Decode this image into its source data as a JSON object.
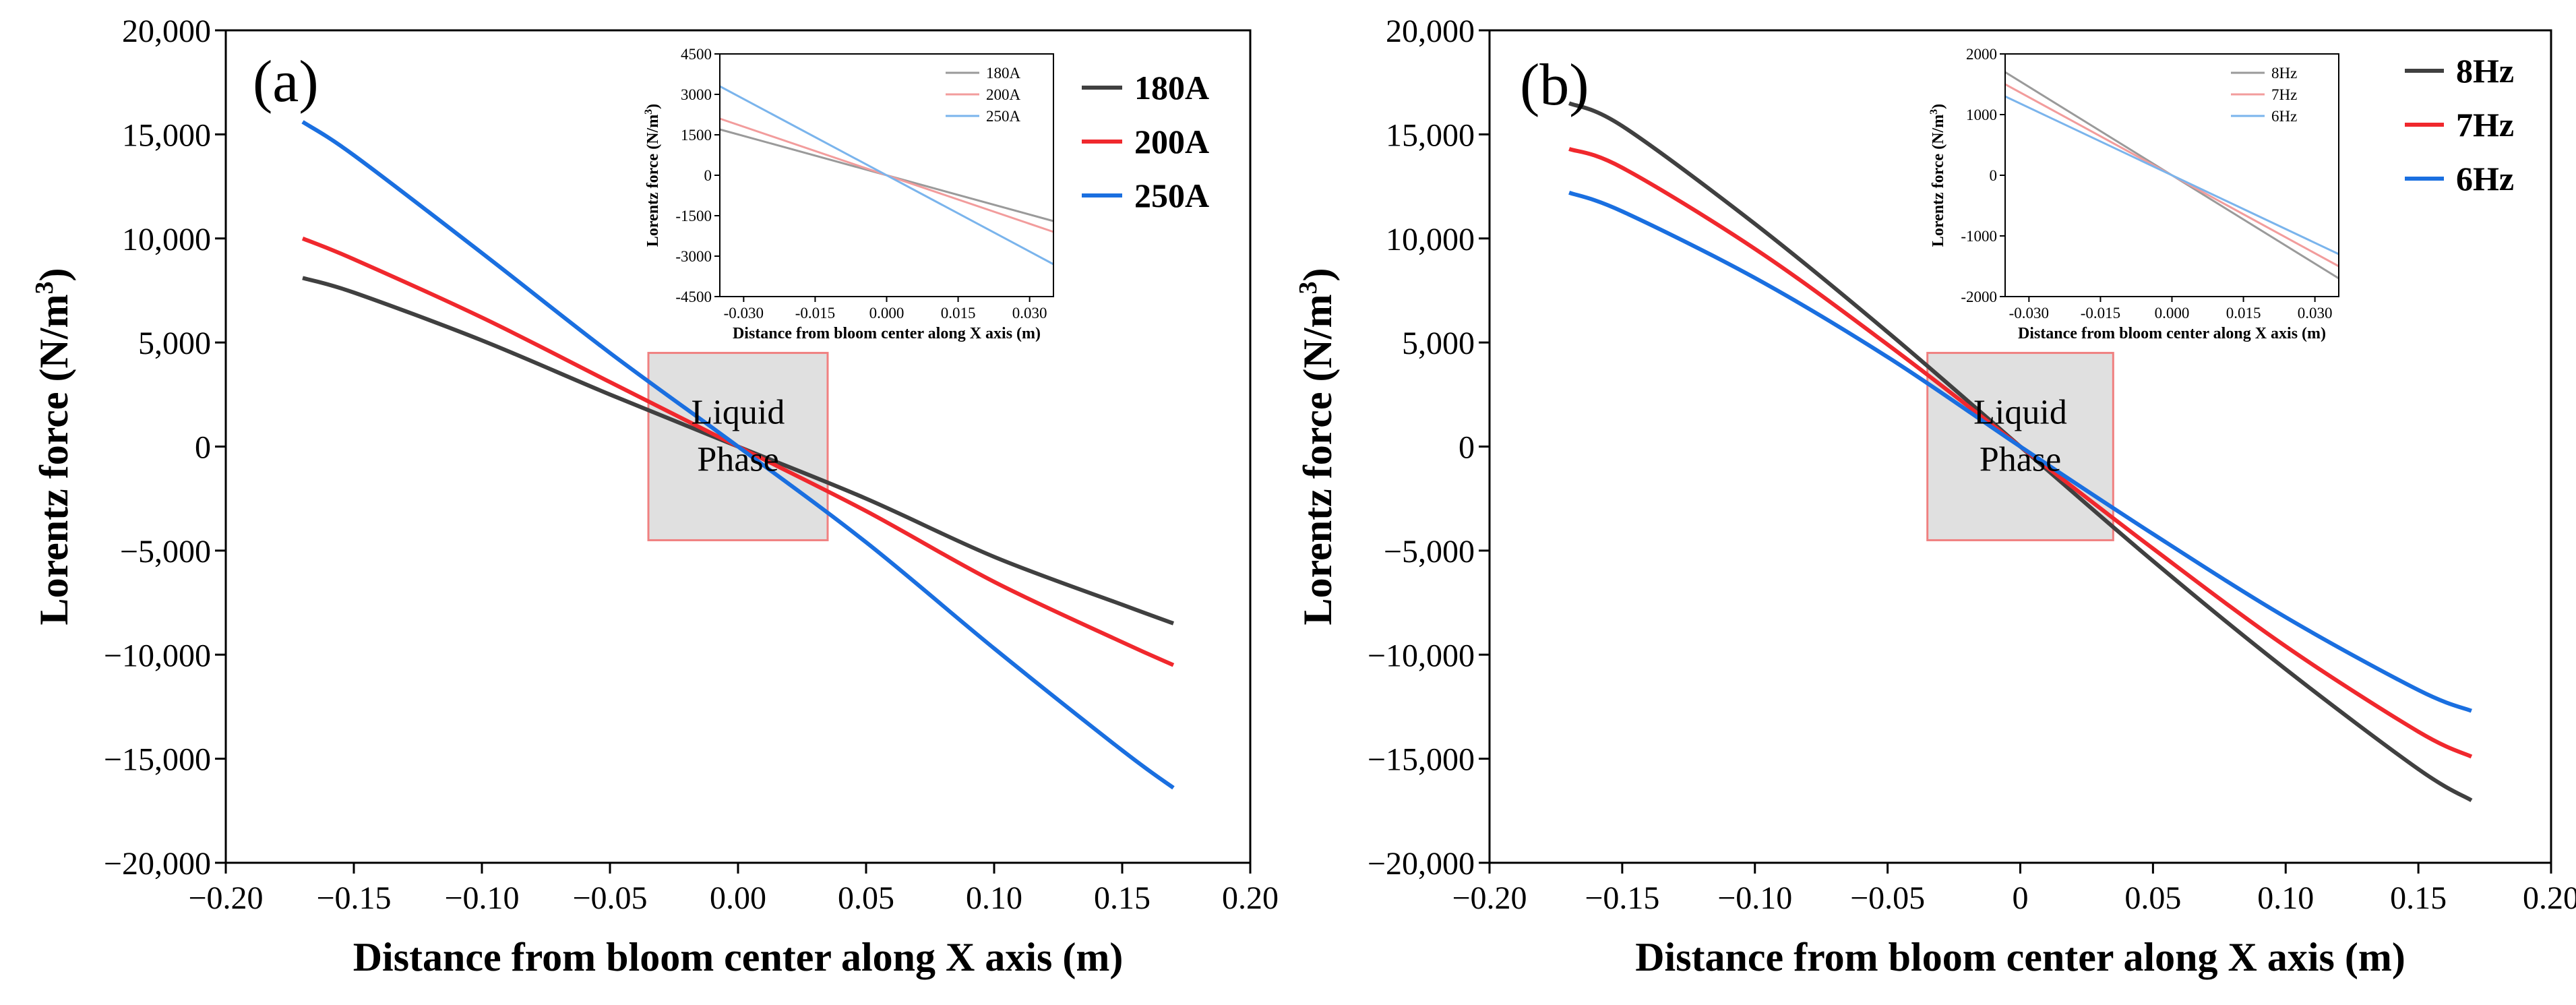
{
  "chart_data": [
    {
      "type": "line",
      "panel_label": "(a)",
      "xlabel": "Distance from bloom center along X axis (m)",
      "ylabel": "Lorentz force (N/m3)",
      "ylabel_main": "Lorentz  force  (N/m",
      "ylabel_sup": "3",
      "ylabel_tail": ")",
      "xlim": [
        -0.2,
        0.2
      ],
      "ylim": [
        -20000,
        20000
      ],
      "xticks": [
        -0.2,
        -0.15,
        -0.1,
        -0.05,
        0,
        0.05,
        0.1,
        0.15,
        0.2
      ],
      "xtick_labels": [
        "−0.20",
        "−0.15",
        "−0.10",
        "−0.05",
        "0.00",
        "0.05",
        "0.10",
        "0.15",
        "0.20"
      ],
      "yticks": [
        -20000,
        -15000,
        -10000,
        -5000,
        0,
        5000,
        10000,
        15000,
        20000
      ],
      "ytick_labels": [
        "−20,000",
        "−15,000",
        "−10,000",
        "−5,000",
        "0",
        "5,000",
        "10,000",
        "15,000",
        "20,000"
      ],
      "legend_position": "top-right",
      "annotation": {
        "text_line1": "Liquid",
        "text_line2": "Phase",
        "x_range": [
          -0.035,
          0.035
        ],
        "y_range": [
          -4500,
          4500
        ]
      },
      "series": [
        {
          "name": "180A",
          "color": "#404040",
          "x": [
            -0.17,
            -0.15,
            -0.1,
            -0.05,
            0,
            0.05,
            0.1,
            0.15,
            0.17
          ],
          "values": [
            8100,
            7400,
            5100,
            2500,
            0,
            -2500,
            -5300,
            -7600,
            -8500
          ]
        },
        {
          "name": "200A",
          "color": "#f0282d",
          "x": [
            -0.17,
            -0.15,
            -0.1,
            -0.05,
            0,
            0.05,
            0.1,
            0.15,
            0.17
          ],
          "values": [
            10000,
            9000,
            6200,
            3100,
            0,
            -3100,
            -6500,
            -9400,
            -10500
          ]
        },
        {
          "name": "250A",
          "color": "#1a6fe0",
          "x": [
            -0.17,
            -0.15,
            -0.1,
            -0.05,
            0,
            0.05,
            0.1,
            0.15,
            0.17
          ],
          "values": [
            15600,
            14000,
            9300,
            4500,
            0,
            -4600,
            -9700,
            -14600,
            -16400
          ]
        }
      ],
      "inset": {
        "xlabel": "Distance from bloom center along X axis (m)",
        "ylabel_main": "Lorentz force (N/m",
        "ylabel_sup": "3",
        "ylabel_tail": ")",
        "xlim": [
          -0.035,
          0.035
        ],
        "ylim": [
          -4500,
          4500
        ],
        "xticks": [
          -0.03,
          -0.015,
          0,
          0.015,
          0.03
        ],
        "xtick_labels": [
          "-0.030",
          "-0.015",
          "0.000",
          "0.015",
          "0.030"
        ],
        "yticks": [
          -4500,
          -3000,
          -1500,
          0,
          1500,
          3000,
          4500
        ],
        "ytick_labels": [
          "-4500",
          "-3000",
          "-1500",
          "0",
          "1500",
          "3000",
          "4500"
        ],
        "series": [
          {
            "name": "180A",
            "color": "#9a9a9a",
            "x": [
              -0.035,
              0.035
            ],
            "values": [
              1700,
              -1700
            ]
          },
          {
            "name": "200A",
            "color": "#f29c9c",
            "x": [
              -0.035,
              0.035
            ],
            "values": [
              2100,
              -2100
            ]
          },
          {
            "name": "250A",
            "color": "#7ab4ec",
            "x": [
              -0.035,
              0.035
            ],
            "values": [
              3300,
              -3300
            ]
          }
        ]
      }
    },
    {
      "type": "line",
      "panel_label": "(b)",
      "xlabel": "Distance from bloom center along X axis (m)",
      "ylabel": "Lorentz force (N/m3)",
      "ylabel_main": "Lorentz  force  (N/m",
      "ylabel_sup": "3",
      "ylabel_tail": ")",
      "xlim": [
        -0.2,
        0.2
      ],
      "ylim": [
        -20000,
        20000
      ],
      "xticks": [
        -0.2,
        -0.15,
        -0.1,
        -0.05,
        0,
        0.05,
        0.1,
        0.15,
        0.2
      ],
      "xtick_labels": [
        "−0.20",
        "−0.15",
        "−0.10",
        "−0.05",
        "0",
        "0.05",
        "0.10",
        "0.15",
        "0.20"
      ],
      "yticks": [
        -20000,
        -15000,
        -10000,
        -5000,
        0,
        5000,
        10000,
        15000,
        20000
      ],
      "ytick_labels": [
        "−20,000",
        "−15,000",
        "−10,000",
        "−5,000",
        "0",
        "5,000",
        "10,000",
        "15,000",
        "20,000"
      ],
      "legend_position": "top-right",
      "annotation": {
        "text_line1": "Liquid",
        "text_line2": "Phase",
        "x_range": [
          -0.035,
          0.035
        ],
        "y_range": [
          -4500,
          4500
        ]
      },
      "series": [
        {
          "name": "8Hz",
          "color": "#404040",
          "x": [
            -0.17,
            -0.15,
            -0.1,
            -0.05,
            0,
            0.05,
            0.1,
            0.15,
            0.17
          ],
          "values": [
            16500,
            15400,
            10700,
            5500,
            0,
            -5500,
            -10700,
            -15500,
            -17000
          ]
        },
        {
          "name": "7Hz",
          "color": "#f0282d",
          "x": [
            -0.17,
            -0.15,
            -0.1,
            -0.05,
            0,
            0.05,
            0.1,
            0.15,
            0.17
          ],
          "values": [
            14300,
            13400,
            9500,
            4900,
            0,
            -4900,
            -9600,
            -13700,
            -14900
          ]
        },
        {
          "name": "6Hz",
          "color": "#1a6fe0",
          "x": [
            -0.17,
            -0.15,
            -0.1,
            -0.05,
            0,
            0.05,
            0.1,
            0.15,
            0.17
          ],
          "values": [
            12200,
            11300,
            8100,
            4300,
            0,
            -4200,
            -8200,
            -11700,
            -12700
          ]
        }
      ],
      "inset": {
        "xlabel": "Distance from bloom center along X axis (m)",
        "ylabel_main": "Lorentz force (N/m",
        "ylabel_sup": "3",
        "ylabel_tail": ")",
        "xlim": [
          -0.035,
          0.035
        ],
        "ylim": [
          -2000,
          2000
        ],
        "xticks": [
          -0.03,
          -0.015,
          0,
          0.015,
          0.03
        ],
        "xtick_labels": [
          "-0.030",
          "-0.015",
          "0.000",
          "0.015",
          "0.030"
        ],
        "yticks": [
          -2000,
          -1000,
          0,
          1000,
          2000
        ],
        "ytick_labels": [
          "-2000",
          "-1000",
          "0",
          "1000",
          "2000"
        ],
        "series": [
          {
            "name": "8Hz",
            "color": "#9a9a9a",
            "x": [
              -0.035,
              0.035
            ],
            "values": [
              1700,
              -1700
            ]
          },
          {
            "name": "7Hz",
            "color": "#f29c9c",
            "x": [
              -0.035,
              0.035
            ],
            "values": [
              1500,
              -1500
            ]
          },
          {
            "name": "6Hz",
            "color": "#7ab4ec",
            "x": [
              -0.035,
              0.035
            ],
            "values": [
              1300,
              -1300
            ]
          }
        ]
      }
    }
  ]
}
